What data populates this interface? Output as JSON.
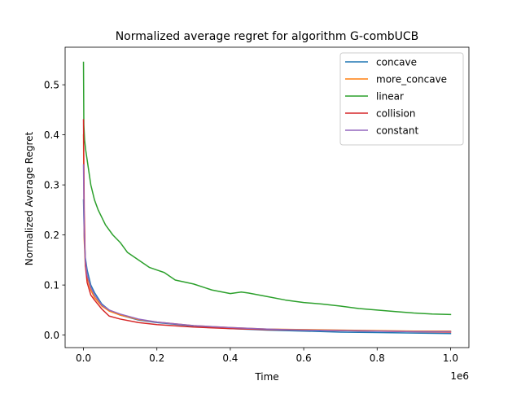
{
  "chart_data": {
    "type": "line",
    "title": "Normalized average regret for algorithm G-combUCB",
    "xlabel": "Time",
    "ylabel": "Normalized Average Regret",
    "x_offset_label": "1e6",
    "xlim": [
      -0.05,
      1.05
    ],
    "ylim": [
      -0.025,
      0.575
    ],
    "xticks": [
      0.0,
      0.2,
      0.4,
      0.6,
      0.8,
      1.0
    ],
    "xtick_labels": [
      "0.0",
      "0.2",
      "0.4",
      "0.6",
      "0.8",
      "1.0"
    ],
    "yticks": [
      0.0,
      0.1,
      0.2,
      0.3,
      0.4,
      0.5
    ],
    "ytick_labels": [
      "0.0",
      "0.1",
      "0.2",
      "0.3",
      "0.4",
      "0.5"
    ],
    "grid": false,
    "legend_position": "top-right",
    "series": [
      {
        "name": "concave",
        "color": "#1f77b4",
        "x": [
          0.0,
          0.002,
          0.005,
          0.01,
          0.02,
          0.03,
          0.05,
          0.07,
          0.1,
          0.15,
          0.2,
          0.3,
          0.4,
          0.5,
          0.6,
          0.7,
          0.8,
          0.9,
          1.0
        ],
        "y": [
          0.27,
          0.2,
          0.155,
          0.13,
          0.1,
          0.085,
          0.062,
          0.05,
          0.04,
          0.03,
          0.025,
          0.018,
          0.013,
          0.01,
          0.008,
          0.006,
          0.005,
          0.004,
          0.003
        ]
      },
      {
        "name": "more_concave",
        "color": "#ff7f0e",
        "x": [
          0.0,
          0.002,
          0.005,
          0.01,
          0.02,
          0.03,
          0.05,
          0.07,
          0.1,
          0.15,
          0.2,
          0.3,
          0.4,
          0.5,
          0.6,
          0.7,
          0.8,
          0.9,
          1.0
        ],
        "y": [
          0.4,
          0.19,
          0.14,
          0.115,
          0.09,
          0.075,
          0.058,
          0.048,
          0.04,
          0.031,
          0.026,
          0.019,
          0.015,
          0.012,
          0.011,
          0.01,
          0.009,
          0.008,
          0.008
        ]
      },
      {
        "name": "linear",
        "color": "#2ca02c",
        "x": [
          0.0,
          0.001,
          0.003,
          0.006,
          0.01,
          0.015,
          0.02,
          0.03,
          0.04,
          0.05,
          0.06,
          0.08,
          0.1,
          0.12,
          0.15,
          0.18,
          0.2,
          0.22,
          0.25,
          0.3,
          0.35,
          0.4,
          0.43,
          0.45,
          0.5,
          0.55,
          0.6,
          0.65,
          0.7,
          0.75,
          0.8,
          0.85,
          0.9,
          0.95,
          1.0
        ],
        "y": [
          0.545,
          0.42,
          0.39,
          0.37,
          0.35,
          0.325,
          0.3,
          0.27,
          0.25,
          0.235,
          0.22,
          0.2,
          0.185,
          0.165,
          0.15,
          0.135,
          0.13,
          0.125,
          0.11,
          0.102,
          0.09,
          0.083,
          0.086,
          0.084,
          0.077,
          0.07,
          0.065,
          0.062,
          0.058,
          0.053,
          0.05,
          0.047,
          0.044,
          0.042,
          0.041
        ]
      },
      {
        "name": "collision",
        "color": "#d62728",
        "x": [
          0.0,
          0.002,
          0.005,
          0.01,
          0.02,
          0.03,
          0.05,
          0.07,
          0.1,
          0.15,
          0.2,
          0.3,
          0.4,
          0.5,
          0.6,
          0.7,
          0.8,
          0.9,
          1.0
        ],
        "y": [
          0.43,
          0.25,
          0.14,
          0.105,
          0.08,
          0.07,
          0.052,
          0.038,
          0.032,
          0.025,
          0.021,
          0.016,
          0.013,
          0.011,
          0.01,
          0.009,
          0.008,
          0.007,
          0.006
        ]
      },
      {
        "name": "constant",
        "color": "#9467bd",
        "x": [
          0.0,
          0.002,
          0.005,
          0.01,
          0.02,
          0.03,
          0.05,
          0.07,
          0.1,
          0.15,
          0.2,
          0.3,
          0.4,
          0.5,
          0.6,
          0.7,
          0.8,
          0.9,
          1.0
        ],
        "y": [
          0.34,
          0.2,
          0.15,
          0.12,
          0.095,
          0.08,
          0.06,
          0.05,
          0.042,
          0.032,
          0.026,
          0.019,
          0.015,
          0.012,
          0.01,
          0.009,
          0.008,
          0.007,
          0.007
        ]
      }
    ]
  }
}
